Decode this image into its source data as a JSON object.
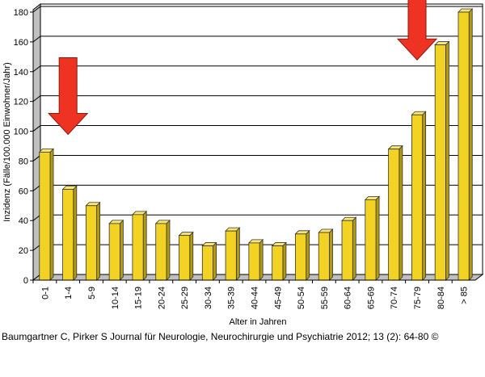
{
  "chart_data": {
    "type": "bar",
    "categories": [
      "0-1",
      "1-4",
      "5-9",
      "10-14",
      "15-19",
      "20-24",
      "25-29",
      "30-34",
      "35-39",
      "40-44",
      "45-49",
      "50-54",
      "55-59",
      "60-64",
      "65-69",
      "70-74",
      "75-79",
      "80-84",
      "> 85"
    ],
    "values": [
      86,
      61,
      50,
      38,
      44,
      38,
      30,
      23,
      33,
      25,
      23,
      31,
      32,
      40,
      54,
      88,
      111,
      158,
      180
    ],
    "xlabel": "Alter in Jahren",
    "ylabel": "Inzidenz (Fälle/100.000 Einwohner/Jahr)",
    "ylim": [
      0,
      180
    ],
    "yticks": [
      0,
      20,
      40,
      60,
      80,
      100,
      120,
      140,
      160,
      180
    ],
    "grid": true,
    "bar_color": "#f2d324",
    "bar_edge_color": "#333333",
    "annotations": [
      {
        "type": "arrow",
        "direction": "down",
        "target_category": "1-4",
        "color": "#ee3322"
      },
      {
        "type": "arrow",
        "direction": "down",
        "target_category": "75-79",
        "color": "#ee3322"
      }
    ]
  },
  "caption": "Baumgartner C, Pirker S Journal für Neurologie, Neurochirurgie und Psychiatrie 2012; 13 (2): 64-80 ©"
}
